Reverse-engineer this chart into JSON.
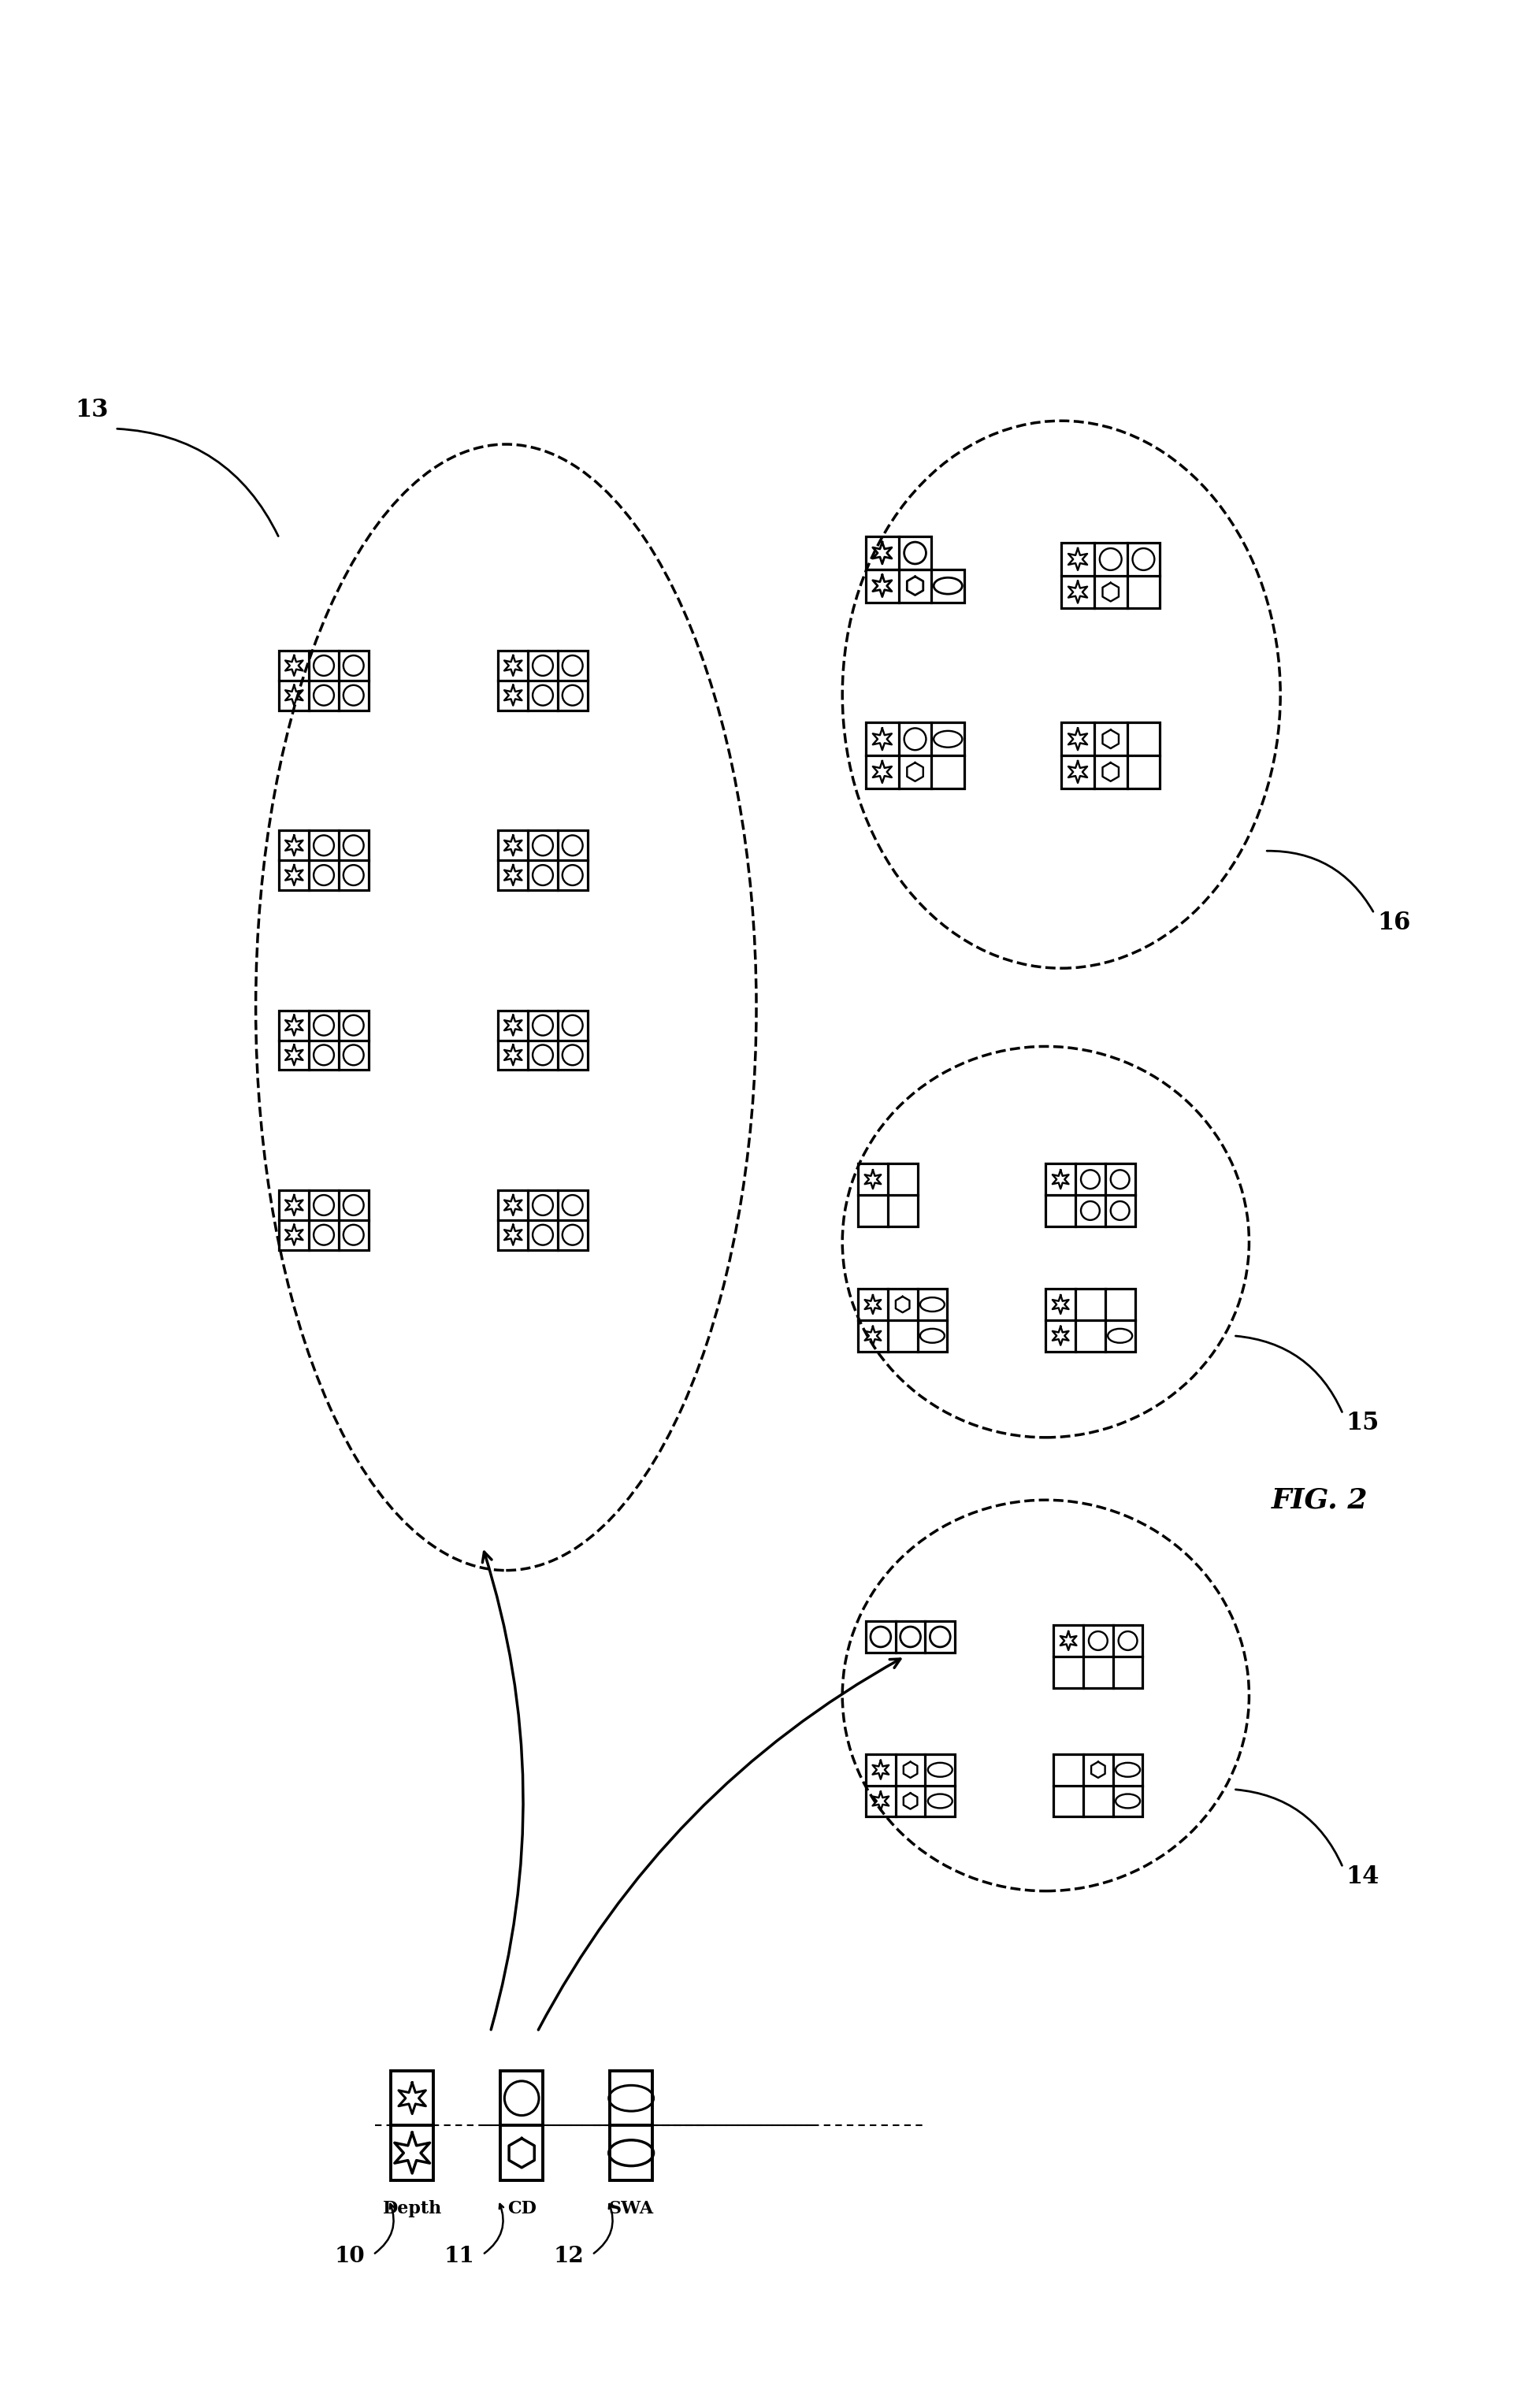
{
  "fig_width": 19.23,
  "fig_height": 30.57,
  "bg_color": "#ffffff",
  "labels": {
    "10": "10",
    "11": "11",
    "12": "12",
    "13": "13",
    "14": "14",
    "15": "15",
    "16": "16",
    "depth": "Depth",
    "cd": "CD",
    "swa": "SWA",
    "fig2": "FIG. 2"
  }
}
